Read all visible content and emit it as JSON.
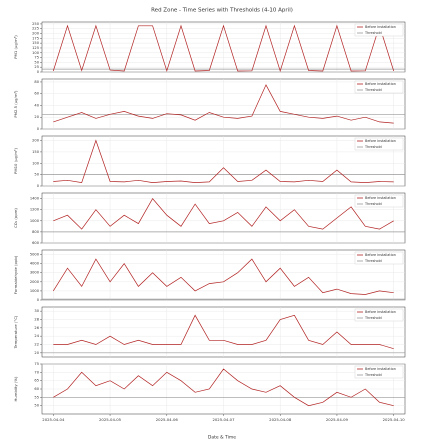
{
  "title": "Red Zone - Time Series with Thresholds (4-10 April)",
  "xlabel": "Date & Time",
  "x": [
    0,
    0.25,
    0.5,
    0.75,
    1,
    1.25,
    1.5,
    1.75,
    2,
    2.25,
    2.5,
    2.75,
    3,
    3.25,
    3.5,
    3.75,
    4,
    4.25,
    4.5,
    4.75,
    5,
    5.25,
    5.5,
    5.75,
    6
  ],
  "xlim": [
    -0.2,
    6.2
  ],
  "xticks": [
    {
      "value": 0,
      "label": "2025-04-04"
    },
    {
      "value": 1,
      "label": "2025-04-05"
    },
    {
      "value": 2,
      "label": "2025-04-06"
    },
    {
      "value": 3,
      "label": "2025-04-07"
    },
    {
      "value": 4,
      "label": "2025-04-08"
    },
    {
      "value": 5,
      "label": "2025-04-09"
    },
    {
      "value": 6,
      "label": "2025-04-10"
    }
  ],
  "chart_data": [
    {
      "type": "line",
      "ylabel": "PM1 (µg/m³)",
      "ylim": [
        0,
        260
      ],
      "yticks": [
        0,
        25,
        50,
        75,
        100,
        125,
        150,
        175,
        200,
        225,
        250
      ],
      "grid": true,
      "series": [
        {
          "name": "Before installation",
          "color": "#b22222",
          "values": [
            5,
            240,
            8,
            240,
            10,
            5,
            240,
            240,
            6,
            240,
            5,
            8,
            240,
            5,
            6,
            240,
            5,
            240,
            8,
            5,
            240,
            5,
            6,
            240,
            5
          ]
        }
      ],
      "threshold": {
        "name": "Threshold",
        "value": 15,
        "color": "#999999"
      }
    },
    {
      "type": "line",
      "ylabel": "PM2.5 (µg/m³)",
      "ylim": [
        0,
        85
      ],
      "yticks": [
        0,
        20,
        40,
        60,
        80
      ],
      "grid": true,
      "series": [
        {
          "name": "Before installation",
          "color": "#b22222",
          "values": [
            12,
            20,
            28,
            18,
            25,
            30,
            22,
            18,
            26,
            24,
            15,
            28,
            20,
            18,
            22,
            75,
            30,
            25,
            20,
            18,
            22,
            15,
            20,
            12,
            10
          ]
        }
      ],
      "threshold": {
        "name": "Threshold",
        "value": 25,
        "color": "#999999"
      }
    },
    {
      "type": "line",
      "ylabel": "PM10 (µg/m³)",
      "ylim": [
        0,
        220
      ],
      "yticks": [
        0,
        50,
        100,
        150,
        200
      ],
      "grid": true,
      "series": [
        {
          "name": "Before installation",
          "color": "#b22222",
          "values": [
            20,
            25,
            15,
            200,
            20,
            18,
            25,
            15,
            20,
            22,
            15,
            18,
            80,
            20,
            25,
            70,
            20,
            18,
            25,
            20,
            70,
            18,
            15,
            20,
            18
          ]
        }
      ],
      "threshold": {
        "name": "Threshold",
        "value": 50,
        "color": "#999999"
      }
    },
    {
      "type": "line",
      "ylabel": "CO₂ (ppm)",
      "ylim": [
        600,
        1500
      ],
      "yticks": [
        600,
        800,
        1000,
        1200,
        1400
      ],
      "grid": true,
      "series": [
        {
          "name": "Before installation",
          "color": "#b22222",
          "values": [
            1000,
            1100,
            850,
            1200,
            900,
            1100,
            950,
            1400,
            1100,
            900,
            1300,
            950,
            1000,
            1150,
            900,
            1250,
            1000,
            1200,
            900,
            850,
            1050,
            1250,
            900,
            850,
            1000
          ]
        }
      ],
      "threshold": {
        "name": "Threshold",
        "value": 800,
        "color": "#999999"
      }
    },
    {
      "type": "line",
      "ylabel": "Formaldehyde (ppb)",
      "ylim": [
        0,
        5500
      ],
      "yticks": [
        0,
        1000,
        2000,
        3000,
        4000,
        5000
      ],
      "grid": true,
      "series": [
        {
          "name": "Before installation",
          "color": "#b22222",
          "values": [
            1000,
            3500,
            1500,
            4500,
            2000,
            4000,
            1500,
            3000,
            1500,
            2500,
            1000,
            1800,
            2000,
            3000,
            4500,
            2000,
            3500,
            1500,
            2500,
            800,
            1200,
            700,
            600,
            1000,
            800
          ]
        }
      ],
      "threshold": {
        "name": "Threshold",
        "value": 100,
        "color": "#999999"
      }
    },
    {
      "type": "line",
      "ylabel": "Temperature (°C)",
      "ylim": [
        19,
        31
      ],
      "yticks": [
        20,
        22,
        24,
        26,
        28,
        30
      ],
      "grid": true,
      "series": [
        {
          "name": "Before installation",
          "color": "#b22222",
          "values": [
            22,
            22,
            23,
            22,
            24,
            22,
            23,
            22,
            22,
            22,
            29,
            23,
            23,
            22,
            22,
            23,
            28,
            29,
            23,
            22,
            25,
            22,
            22,
            22,
            21
          ]
        }
      ],
      "threshold": {
        "name": "Threshold",
        "value": 20,
        "color": "#999999"
      }
    },
    {
      "type": "line",
      "ylabel": "Humidity (%)",
      "ylim": [
        45,
        75
      ],
      "yticks": [
        50,
        55,
        60,
        65,
        70,
        75
      ],
      "grid": true,
      "series": [
        {
          "name": "Before installation",
          "color": "#b22222",
          "values": [
            55,
            60,
            70,
            62,
            65,
            60,
            68,
            62,
            70,
            65,
            58,
            60,
            72,
            65,
            60,
            58,
            62,
            55,
            50,
            52,
            58,
            55,
            60,
            52,
            50
          ]
        }
      ],
      "threshold": {
        "name": "Threshold",
        "value": 55,
        "color": "#999999"
      }
    }
  ]
}
